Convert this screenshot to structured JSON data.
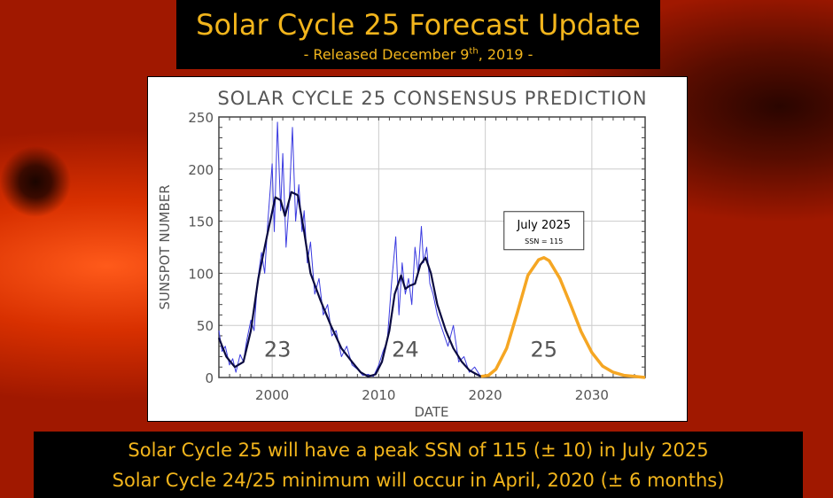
{
  "header": {
    "title": "Solar Cycle 25 Forecast Update",
    "subtitle_pre": "- Released December 9",
    "subtitle_sup": "th",
    "subtitle_post": ", 2019 -"
  },
  "footer": {
    "line1": "Solar Cycle 25 will have a peak SSN of 115 (± 10) in July 2025",
    "line2": "Solar Cycle 24/25 minimum will occur in April, 2020 (± 6 months)"
  },
  "colors": {
    "accent_text": "#f2b51c",
    "observed_monthly": "#3a3ae0",
    "observed_smoothed": "#0a0a40",
    "prediction": "#f5a623"
  },
  "chart_data": {
    "type": "line",
    "title": "SOLAR CYCLE 25 CONSENSUS PREDICTION",
    "xlabel": "DATE",
    "ylabel": "SUNSPOT NUMBER",
    "xlim": [
      1995,
      2035
    ],
    "ylim": [
      0,
      250
    ],
    "xticks": [
      2000,
      2010,
      2020,
      2030
    ],
    "yticks": [
      0,
      50,
      100,
      150,
      200,
      250
    ],
    "grid": true,
    "cycle_labels": [
      {
        "text": "23",
        "x": 2000.5,
        "y": 20
      },
      {
        "text": "24",
        "x": 2012.5,
        "y": 20
      },
      {
        "text": "25",
        "x": 2025.5,
        "y": 20
      }
    ],
    "annotation": {
      "title": "July 2025",
      "text": "SSN = 115",
      "x": 2025.5,
      "y": 115
    },
    "series": [
      {
        "id": "monthly",
        "x": [
          1995,
          1995.3,
          1995.6,
          1996,
          1996.3,
          1996.6,
          1997,
          1997.3,
          1997.6,
          1998,
          1998.3,
          1998.6,
          1999,
          1999.3,
          1999.6,
          2000,
          2000.2,
          2000.5,
          2000.8,
          2001,
          2001.3,
          2001.6,
          2001.9,
          2002.2,
          2002.5,
          2002.8,
          2003,
          2003.3,
          2003.6,
          2004,
          2004.4,
          2004.8,
          2005.2,
          2005.6,
          2006,
          2006.5,
          2007,
          2007.5,
          2008,
          2008.5,
          2009,
          2009.5,
          2010,
          2010.4,
          2010.8,
          2011.2,
          2011.6,
          2011.9,
          2012.2,
          2012.5,
          2012.8,
          2013.1,
          2013.4,
          2013.7,
          2014,
          2014.2,
          2014.5,
          2014.8,
          2015.1,
          2015.5,
          2016,
          2016.5,
          2017,
          2017.5,
          2018,
          2018.5,
          2019,
          2019.5
        ],
        "values": [
          45,
          25,
          30,
          12,
          18,
          5,
          22,
          15,
          35,
          55,
          45,
          90,
          120,
          100,
          150,
          205,
          140,
          245,
          160,
          215,
          125,
          170,
          240,
          150,
          185,
          140,
          160,
          110,
          130,
          80,
          95,
          60,
          70,
          40,
          45,
          20,
          30,
          12,
          8,
          2,
          3,
          1,
          12,
          25,
          35,
          90,
          135,
          60,
          110,
          80,
          95,
          70,
          125,
          100,
          145,
          110,
          125,
          90,
          80,
          60,
          45,
          30,
          50,
          15,
          20,
          5,
          10,
          2
        ]
      },
      {
        "id": "smoothed",
        "x": [
          1995,
          1995.7,
          1996.5,
          1997.3,
          1998,
          1998.7,
          1999.5,
          2000.3,
          2000.8,
          2001.2,
          2001.8,
          2002.4,
          2003,
          2003.6,
          2004.5,
          2005.5,
          2006.5,
          2007.5,
          2008.3,
          2009,
          2009.7,
          2010.3,
          2011,
          2011.5,
          2012.1,
          2012.5,
          2012.9,
          2013.4,
          2013.9,
          2014.4,
          2014.9,
          2015.5,
          2016.3,
          2017,
          2017.8,
          2018.5,
          2019.2,
          2019.6
        ],
        "values": [
          38,
          20,
          10,
          15,
          45,
          95,
          135,
          173,
          170,
          155,
          178,
          175,
          140,
          100,
          75,
          50,
          28,
          15,
          5,
          1,
          3,
          15,
          45,
          80,
          98,
          85,
          88,
          90,
          108,
          115,
          100,
          70,
          45,
          28,
          15,
          7,
          3,
          1
        ]
      },
      {
        "id": "prediction",
        "x": [
          2019.6,
          2020.3,
          2021,
          2022,
          2023,
          2024,
          2025,
          2025.5,
          2026,
          2027,
          2028,
          2029,
          2030,
          2031,
          2032,
          2033,
          2034,
          2035
        ],
        "values": [
          1,
          2,
          8,
          28,
          62,
          98,
          113,
          115,
          112,
          95,
          70,
          44,
          24,
          11,
          5,
          2,
          1,
          0
        ]
      }
    ]
  }
}
